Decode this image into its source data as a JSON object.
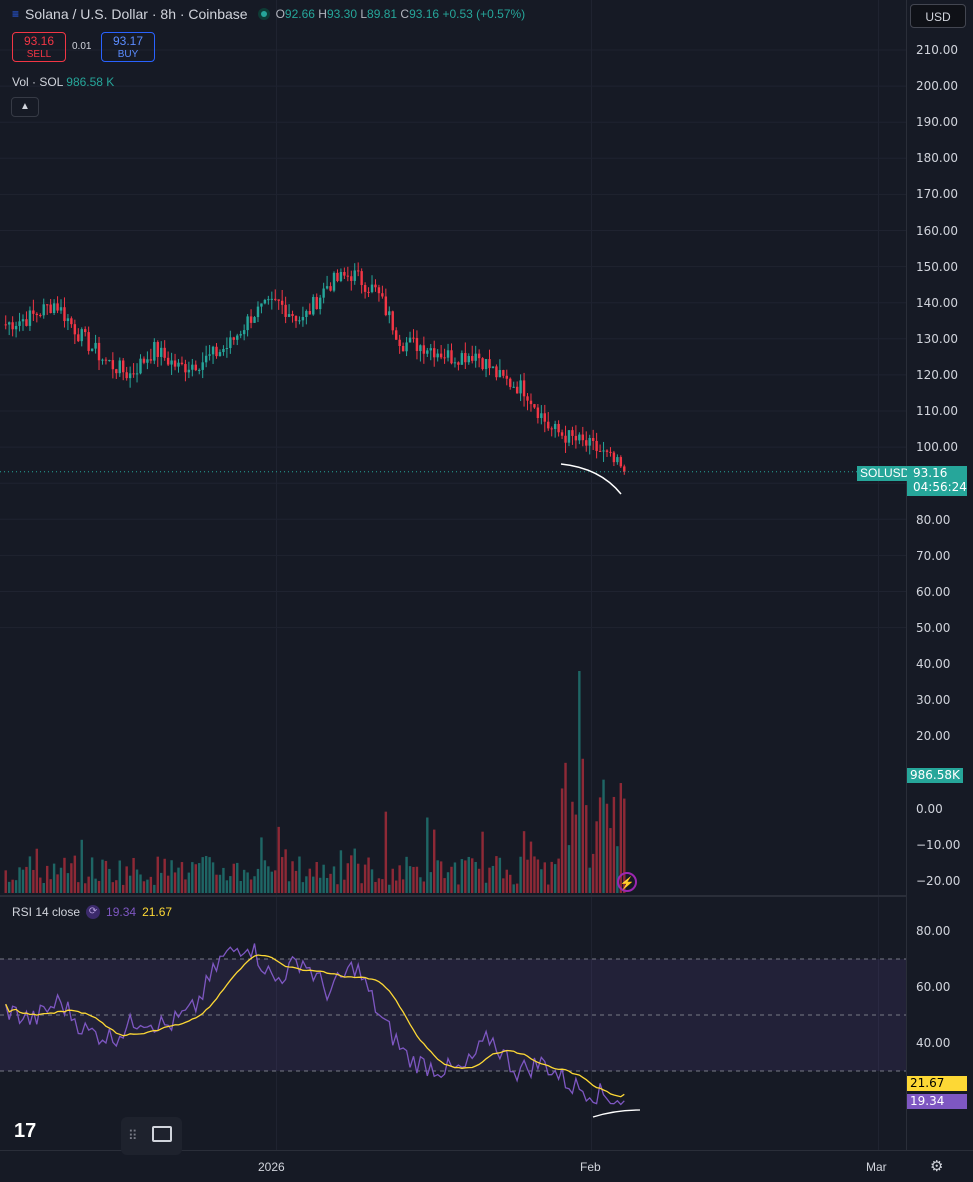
{
  "header": {
    "symbol_title": "Solana / U.S. Dollar · 8h · Coinbase",
    "o_label": "O",
    "o_value": "92.66",
    "h_label": "H",
    "h_value": "93.30",
    "l_label": "L",
    "l_value": "89.81",
    "c_label": "C",
    "c_value": "93.16",
    "change": "+0.53 (+0.57%)"
  },
  "trade": {
    "sell_price": "93.16",
    "sell_label": "SELL",
    "spread": "0.01",
    "buy_price": "93.17",
    "buy_label": "BUY"
  },
  "volume_legend": {
    "label": "Vol · SOL",
    "value": "986.58 K"
  },
  "currency_button": "USD",
  "price_axis": [
    "210.00",
    "200.00",
    "190.00",
    "180.00",
    "170.00",
    "160.00",
    "150.00",
    "140.00",
    "130.00",
    "120.00",
    "110.00",
    "100.00",
    "80.00",
    "70.00",
    "60.00",
    "50.00",
    "40.00",
    "30.00",
    "20.00",
    "0.00",
    "−10.00",
    "−20.00"
  ],
  "symbol_tag": "SOLUSD",
  "last_price": "93.16",
  "countdown": "04:56:24",
  "volume_tag": "986.58K",
  "rsi_legend": {
    "label": "RSI 14 close",
    "rsi_value": "19.34",
    "ma_value": "21.67"
  },
  "rsi_axis": [
    "80.00",
    "60.00",
    "40.00"
  ],
  "rsi_tags": {
    "ma": "21.67",
    "rsi": "19.34"
  },
  "time_axis": [
    "2026",
    "Feb",
    "Mar"
  ],
  "colors": {
    "up": "#26a69a",
    "down": "#f23645",
    "rsi_line": "#7e57c2",
    "rsi_ma": "#fdd835",
    "background": "#161a25"
  },
  "icons": [
    "tradingview-logo-icon",
    "drag-handle-icon",
    "image-icon",
    "settings-gear-icon",
    "chevron-up-icon",
    "lightning-icon"
  ],
  "chart_data": {
    "type": "candlestick",
    "title": "Solana / U.S. Dollar · 8h · Coinbase",
    "ylim": [
      82,
      215
    ],
    "x_ticks": [
      "2026",
      "Feb",
      "Mar"
    ],
    "close_path_key_points": [
      134,
      136,
      140,
      131,
      124,
      120,
      127,
      122,
      124,
      128,
      137,
      140,
      135,
      145,
      148,
      143,
      129,
      128,
      125,
      126,
      119,
      116,
      105,
      102,
      99,
      93.16
    ],
    "last": 93.16,
    "rsi": {
      "period": 14,
      "last": 19.34,
      "ma_last": 21.67,
      "overbought": 70,
      "oversold": 30,
      "ylim": [
        15,
        85
      ]
    },
    "volume_last": "986.58K"
  }
}
